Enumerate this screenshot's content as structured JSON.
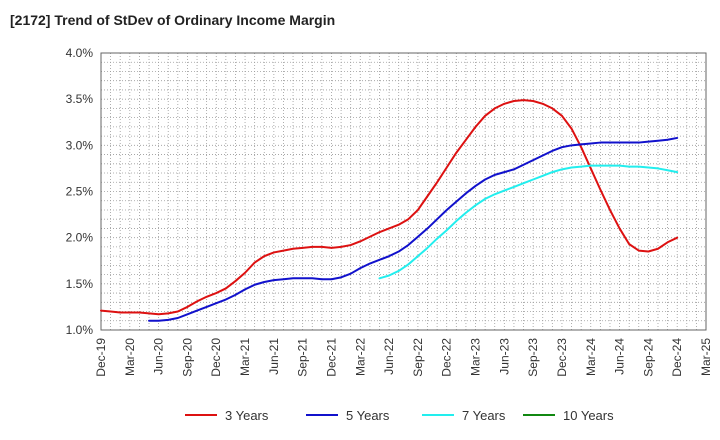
{
  "chart_data": {
    "type": "line",
    "title": "[2172]  Trend of StDev of Ordinary Income Margin",
    "xlabel": "",
    "ylabel": "",
    "ylim": [
      1.0,
      4.0
    ],
    "y_ticks": [
      "1.0%",
      "1.5%",
      "2.0%",
      "2.5%",
      "3.0%",
      "3.5%",
      "4.0%"
    ],
    "x_ticks": [
      "Dec-19",
      "Mar-20",
      "Jun-20",
      "Sep-20",
      "Dec-20",
      "Mar-21",
      "Jun-21",
      "Sep-21",
      "Dec-21",
      "Mar-22",
      "Jun-22",
      "Sep-22",
      "Dec-22",
      "Mar-23",
      "Jun-23",
      "Sep-23",
      "Dec-23",
      "Mar-24",
      "Jun-24",
      "Sep-24",
      "Dec-24",
      "Mar-25"
    ],
    "grid": true,
    "legend": "bottom",
    "series": [
      {
        "name": "3 Years",
        "color": "#dd1111",
        "x": [
          "Dec-19",
          "Jan-20",
          "Feb-20",
          "Mar-20",
          "Apr-20",
          "May-20",
          "Jun-20",
          "Jul-20",
          "Aug-20",
          "Sep-20",
          "Oct-20",
          "Nov-20",
          "Dec-20",
          "Jan-21",
          "Feb-21",
          "Mar-21",
          "Apr-21",
          "May-21",
          "Jun-21",
          "Jul-21",
          "Aug-21",
          "Sep-21",
          "Oct-21",
          "Nov-21",
          "Dec-21",
          "Jan-22",
          "Feb-22",
          "Mar-22",
          "Apr-22",
          "May-22",
          "Jun-22",
          "Jul-22",
          "Aug-22",
          "Sep-22",
          "Oct-22",
          "Nov-22",
          "Dec-22",
          "Jan-23",
          "Feb-23",
          "Mar-23",
          "Apr-23",
          "May-23",
          "Jun-23",
          "Jul-23",
          "Aug-23",
          "Sep-23",
          "Oct-23",
          "Nov-23",
          "Dec-23",
          "Jan-24",
          "Feb-24",
          "Mar-24",
          "Apr-24",
          "May-24",
          "Jun-24",
          "Jul-24",
          "Aug-24",
          "Sep-24",
          "Oct-24",
          "Nov-24",
          "Dec-24"
        ],
        "values": [
          1.21,
          1.2,
          1.19,
          1.19,
          1.19,
          1.18,
          1.17,
          1.18,
          1.2,
          1.25,
          1.31,
          1.36,
          1.4,
          1.45,
          1.53,
          1.62,
          1.73,
          1.8,
          1.84,
          1.86,
          1.88,
          1.89,
          1.9,
          1.9,
          1.89,
          1.9,
          1.92,
          1.96,
          2.01,
          2.06,
          2.1,
          2.14,
          2.2,
          2.3,
          2.45,
          2.6,
          2.76,
          2.92,
          3.06,
          3.2,
          3.32,
          3.4,
          3.45,
          3.48,
          3.49,
          3.48,
          3.45,
          3.4,
          3.32,
          3.18,
          2.98,
          2.75,
          2.52,
          2.3,
          2.1,
          1.93,
          1.86,
          1.85,
          1.88,
          1.95,
          2.0
        ]
      },
      {
        "name": "5 Years",
        "color": "#1111cc",
        "x": [
          "May-20",
          "Jun-20",
          "Jul-20",
          "Aug-20",
          "Sep-20",
          "Oct-20",
          "Nov-20",
          "Dec-20",
          "Jan-21",
          "Feb-21",
          "Mar-21",
          "Apr-21",
          "May-21",
          "Jun-21",
          "Jul-21",
          "Aug-21",
          "Sep-21",
          "Oct-21",
          "Nov-21",
          "Dec-21",
          "Jan-22",
          "Feb-22",
          "Mar-22",
          "Apr-22",
          "May-22",
          "Jun-22",
          "Jul-22",
          "Aug-22",
          "Sep-22",
          "Oct-22",
          "Nov-22",
          "Dec-22",
          "Jan-23",
          "Feb-23",
          "Mar-23",
          "Apr-23",
          "May-23",
          "Jun-23",
          "Jul-23",
          "Aug-23",
          "Sep-23",
          "Oct-23",
          "Nov-23",
          "Dec-23",
          "Jan-24",
          "Feb-24",
          "Mar-24",
          "Apr-24",
          "May-24",
          "Jun-24",
          "Jul-24",
          "Aug-24",
          "Sep-24",
          "Oct-24",
          "Nov-24",
          "Dec-24"
        ],
        "values": [
          1.1,
          1.1,
          1.11,
          1.13,
          1.17,
          1.21,
          1.25,
          1.29,
          1.33,
          1.38,
          1.44,
          1.49,
          1.52,
          1.54,
          1.55,
          1.56,
          1.56,
          1.56,
          1.55,
          1.55,
          1.57,
          1.61,
          1.67,
          1.72,
          1.76,
          1.8,
          1.85,
          1.92,
          2.01,
          2.1,
          2.2,
          2.3,
          2.39,
          2.48,
          2.56,
          2.63,
          2.68,
          2.71,
          2.74,
          2.79,
          2.84,
          2.89,
          2.94,
          2.98,
          3.0,
          3.01,
          3.02,
          3.03,
          3.03,
          3.03,
          3.03,
          3.03,
          3.04,
          3.05,
          3.06,
          3.08
        ]
      },
      {
        "name": "7 Years",
        "color": "#22eeee",
        "x": [
          "May-22",
          "Jun-22",
          "Jul-22",
          "Aug-22",
          "Sep-22",
          "Oct-22",
          "Nov-22",
          "Dec-22",
          "Jan-23",
          "Feb-23",
          "Mar-23",
          "Apr-23",
          "May-23",
          "Jun-23",
          "Jul-23",
          "Aug-23",
          "Sep-23",
          "Oct-23",
          "Nov-23",
          "Dec-23",
          "Jan-24",
          "Feb-24",
          "Mar-24",
          "Apr-24",
          "May-24",
          "Jun-24",
          "Jul-24",
          "Aug-24",
          "Sep-24",
          "Oct-24",
          "Nov-24",
          "Dec-24"
        ],
        "values": [
          1.56,
          1.59,
          1.64,
          1.71,
          1.8,
          1.89,
          1.99,
          2.08,
          2.18,
          2.27,
          2.35,
          2.42,
          2.47,
          2.51,
          2.55,
          2.59,
          2.63,
          2.67,
          2.71,
          2.74,
          2.76,
          2.77,
          2.78,
          2.78,
          2.78,
          2.78,
          2.77,
          2.77,
          2.76,
          2.75,
          2.73,
          2.71
        ]
      },
      {
        "name": "10 Years",
        "color": "#118811",
        "x": [],
        "values": []
      }
    ]
  }
}
